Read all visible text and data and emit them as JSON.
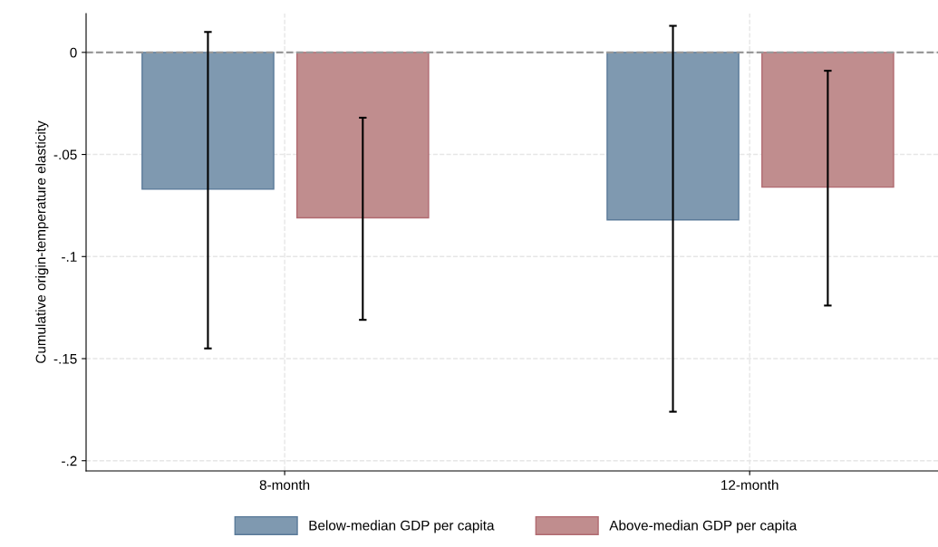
{
  "chart_data": {
    "type": "bar",
    "ylabel": "Cumulative origin-temperature elasticity",
    "categories": [
      "8-month",
      "12-month"
    ],
    "series": [
      {
        "name": "Below-median GDP per capita",
        "color": "#7f99b0",
        "values": [
          -0.067,
          -0.082
        ],
        "errors": [
          [
            -0.145,
            0.01
          ],
          [
            -0.176,
            0.013
          ]
        ]
      },
      {
        "name": "Above-median GDP per capita",
        "color": "#c08d8e",
        "values": [
          -0.081,
          -0.066
        ],
        "errors": [
          [
            -0.131,
            -0.032
          ],
          [
            -0.124,
            -0.009
          ]
        ]
      }
    ],
    "ylim": [
      -0.205,
      0.019
    ],
    "yticks": [
      {
        "value": 0,
        "label": "0"
      },
      {
        "value": -0.05,
        "label": "-.05"
      },
      {
        "value": -0.1,
        "label": "-.1"
      },
      {
        "value": -0.15,
        "label": "-.15"
      },
      {
        "value": -0.2,
        "label": "-.2"
      }
    ],
    "ref_lines": [
      {
        "axis": "y",
        "value": 0,
        "color": "#999999",
        "line_style": "dashed"
      }
    ],
    "grid": true,
    "legend": "bottom"
  }
}
